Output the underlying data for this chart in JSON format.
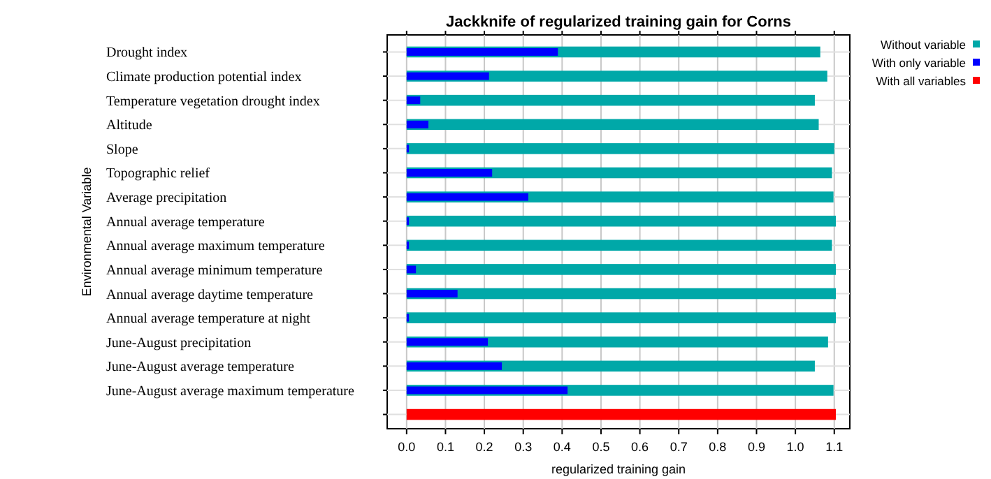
{
  "chart_data": {
    "type": "bar",
    "orientation": "horizontal",
    "title": "Jackknife of regularized training gain for Corns",
    "xlabel": "regularized training gain",
    "ylabel": "Environmental Variable",
    "categories": [
      "Drought index",
      "Climate production potential index",
      "Temperature vegetation drought index",
      "Altitude",
      "Slope",
      "Topographic relief",
      "Average precipitation",
      "Annual average temperature",
      "Annual average maximum temperature",
      "Annual average minimum temperature",
      "Annual average daytime temperature",
      "Annual average temperature at night",
      "June-August precipitation",
      "June-August average temperature",
      "June-August average maximum temperature",
      null
    ],
    "series": [
      {
        "name": "Without variable",
        "color": "#00a8a8",
        "values": [
          1.064,
          1.082,
          1.05,
          1.06,
          1.1,
          1.094,
          1.098,
          1.104,
          1.094,
          1.104,
          1.104,
          1.104,
          1.084,
          1.05,
          1.098,
          null
        ]
      },
      {
        "name": "With only variable",
        "color": "#0000ff",
        "values": [
          0.389,
          0.212,
          0.035,
          0.056,
          0.006,
          0.22,
          0.313,
          0.006,
          0.006,
          0.024,
          0.131,
          0.006,
          0.209,
          0.245,
          0.414,
          null
        ]
      },
      {
        "name": "With all variables",
        "color": "#ff0000",
        "values": [
          null,
          null,
          null,
          null,
          null,
          null,
          null,
          null,
          null,
          null,
          null,
          null,
          null,
          null,
          null,
          1.104
        ]
      }
    ],
    "xlim": [
      -0.05,
      1.14
    ],
    "xticks": [
      {
        "value": 0,
        "label": "0.0"
      },
      0.1,
      0.2,
      0.3,
      0.4,
      0.5,
      0.6,
      0.7,
      0.8,
      0.9,
      {
        "value": 1,
        "label": "1.0"
      },
      1.1
    ],
    "grid": true,
    "legend": "top right"
  }
}
